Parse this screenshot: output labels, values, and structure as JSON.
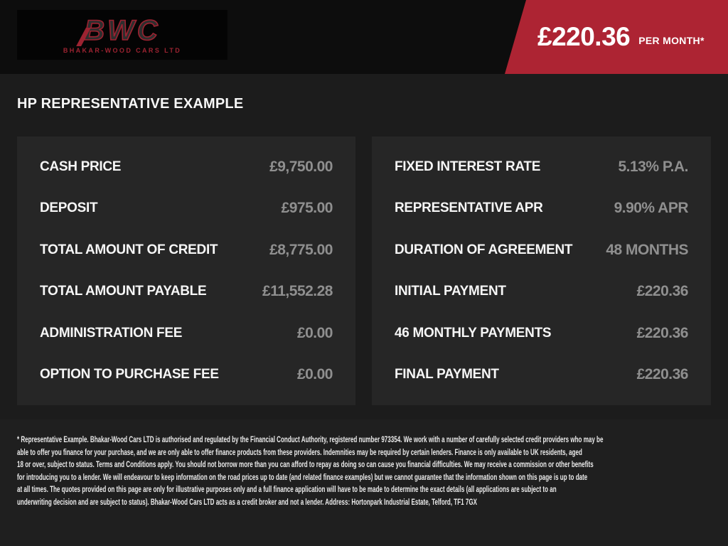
{
  "header": {
    "logo": {
      "initials": "BWC",
      "company": "BHAKAR-WOOD CARS LTD"
    },
    "price_banner": {
      "amount": "£220.36",
      "period": "PER MONTH*",
      "color": "#ad2433"
    }
  },
  "page": {
    "title": "HP REPRESENTATIVE EXAMPLE"
  },
  "finance": {
    "left_rows": [
      {
        "label": "CASH PRICE",
        "value": "£9,750.00"
      },
      {
        "label": "DEPOSIT",
        "value": "£975.00"
      },
      {
        "label": "TOTAL AMOUNT OF CREDIT",
        "value": "£8,775.00"
      },
      {
        "label": "TOTAL AMOUNT PAYABLE",
        "value": "£11,552.28"
      },
      {
        "label": "ADMINISTRATION FEE",
        "value": "£0.00"
      },
      {
        "label": "OPTION TO PURCHASE FEE",
        "value": "£0.00"
      }
    ],
    "right_rows": [
      {
        "label": "FIXED INTEREST RATE",
        "value": "5.13% P.A."
      },
      {
        "label": "REPRESENTATIVE APR",
        "value": "9.90% APR"
      },
      {
        "label": "DURATION OF AGREEMENT",
        "value": "48 MONTHS"
      },
      {
        "label": "INITIAL PAYMENT",
        "value": "£220.36"
      },
      {
        "label": "46 MONTHLY PAYMENTS",
        "value": "£220.36"
      },
      {
        "label": "FINAL PAYMENT",
        "value": "£220.36"
      }
    ]
  },
  "disclaimer": {
    "lines": [
      "* Representative Example. Bhakar-Wood Cars LTD is authorised and regulated by the Financial Conduct Authority, registered number 973354. We work with a number of carefully selected credit providers who may be",
      "able to offer you finance for your purchase, and we are only able to offer finance products from these providers. Indemnities may be required by certain lenders. Finance is only available to UK residents, aged",
      "18 or over, subject to status. Terms and Conditions apply. You should not borrow more than you can afford to repay as doing so can cause you financial difficulties. We may receive a commission or other benefits",
      "for introducing you to a lender. We will endeavour to keep information on the road prices up to date (and related finance examples) but we cannot guarantee that the information shown on this page is up to date",
      "at all times. The quotes provided on this page are only for illustrative purposes only and a full finance application will have to be made to determine the exact details (all applications are subject to an",
      "underwriting decision and are subject to status). Bhakar-Wood Cars LTD acts as a credit broker and not a lender. Address: Hortonpark Industrial Estate, Telford, TF1 7GX"
    ]
  },
  "colors": {
    "accent_red": "#ad2433",
    "value_gray": "#8f8f8f",
    "panel_bg": "#262626",
    "top_strip_bg": "#0d0d0d"
  }
}
